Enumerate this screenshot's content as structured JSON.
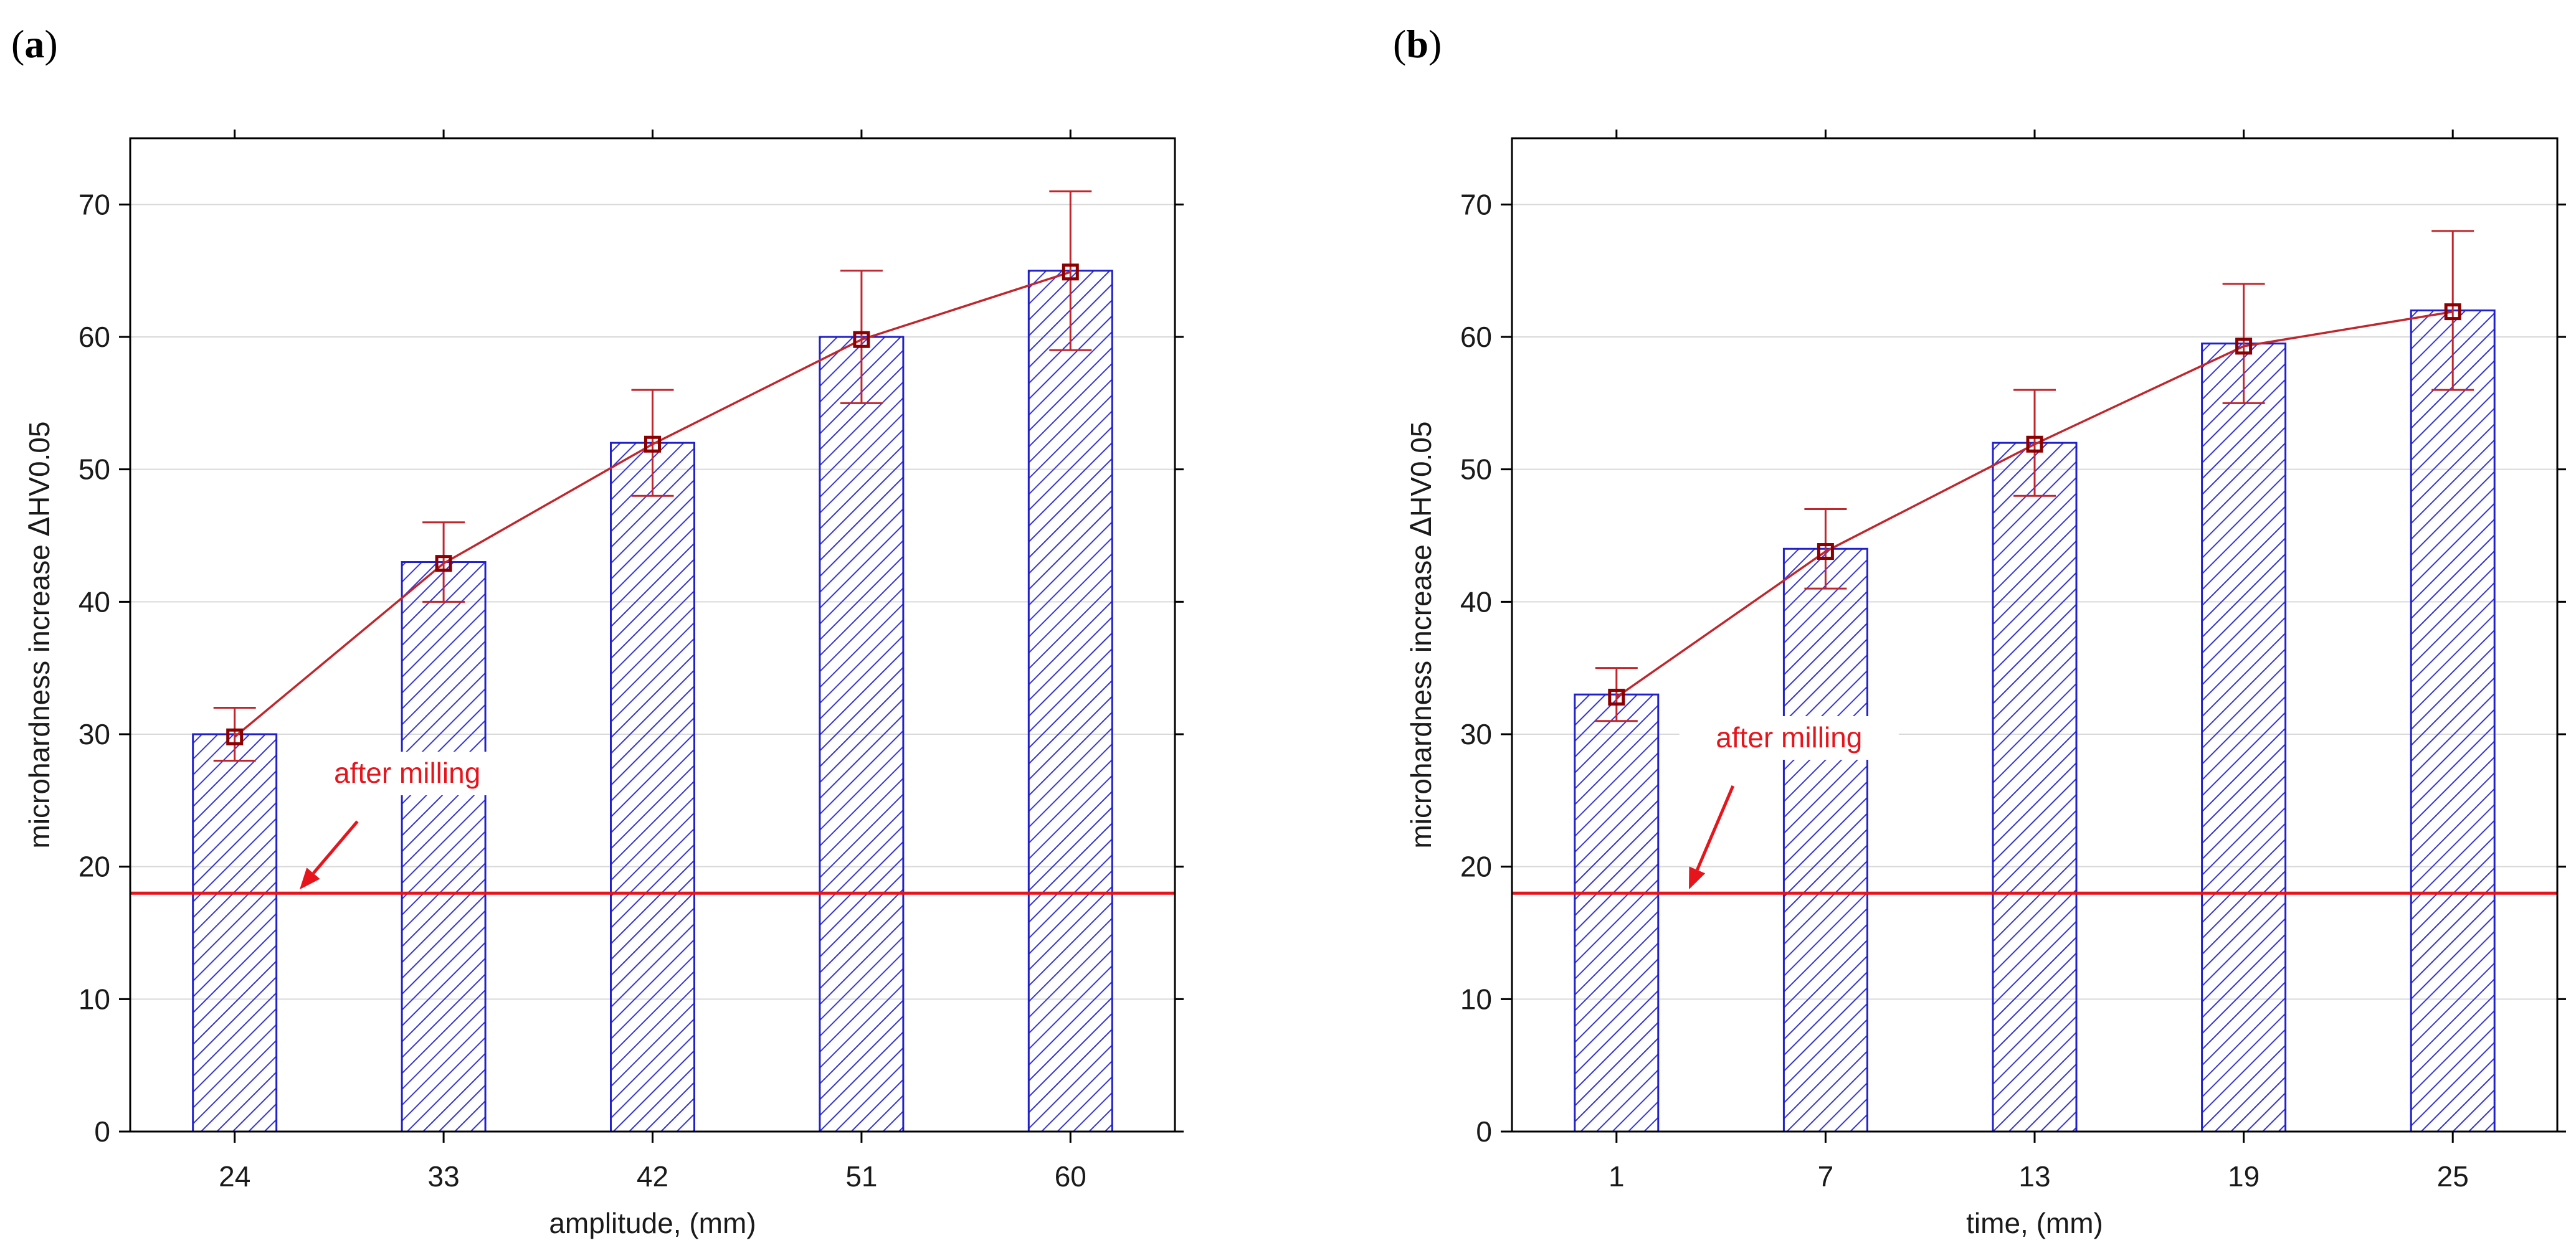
{
  "figure": {
    "colors": {
      "bar_stroke": "#2020cc",
      "hatch": "#3333dd",
      "series_line": "#c0262c",
      "marker": "#8b0000",
      "reference_line": "#e8141c",
      "annotation": "#e8141c",
      "grid": "#d9d9d9",
      "frame": "#000000"
    }
  },
  "chart_data": [
    {
      "panel_label": "(a)",
      "panel_label_parts": {
        "open": "(",
        "letter": "a",
        "close": ")"
      },
      "type": "bar",
      "categories": [
        "24",
        "33",
        "42",
        "51",
        "60"
      ],
      "values": [
        30,
        43,
        52,
        60,
        65
      ],
      "line_series": {
        "type": "line",
        "values": [
          29.8,
          42.9,
          51.9,
          59.8,
          64.9
        ],
        "error_low": [
          28,
          40,
          48,
          55,
          59
        ],
        "error_high": [
          32,
          46,
          56,
          65,
          71
        ]
      },
      "reference_line": {
        "value": 18,
        "label": "after milling"
      },
      "xlabel": "amplitude, (mm)",
      "ylabel_prefix": "microhardness increase  ",
      "ylabel_symbol": "Δ",
      "ylabel_suffix": "HV0.05",
      "ylim": [
        0,
        75
      ],
      "yticks": [
        0,
        10,
        20,
        30,
        40,
        50,
        60,
        70
      ],
      "ytick_labels": [
        "0",
        "10",
        "20",
        "30",
        "40",
        "50",
        "60",
        "70"
      ],
      "grid": "horizontal"
    },
    {
      "panel_label": "(b)",
      "panel_label_parts": {
        "open": "(",
        "letter": "b",
        "close": ")"
      },
      "type": "bar",
      "categories": [
        "1",
        "7",
        "13",
        "19",
        "25"
      ],
      "values": [
        33,
        44,
        52,
        59.5,
        62
      ],
      "line_series": {
        "type": "line",
        "values": [
          32.8,
          43.8,
          51.9,
          59.3,
          61.9
        ],
        "error_low": [
          31,
          41,
          48,
          55,
          56
        ],
        "error_high": [
          35,
          47,
          56,
          64,
          68
        ]
      },
      "reference_line": {
        "value": 18,
        "label": "after milling"
      },
      "xlabel": "time, (mm)",
      "ylabel_prefix": "microhardness increase  ",
      "ylabel_symbol": "Δ",
      "ylabel_suffix": "HV0.05",
      "ylim": [
        0,
        75
      ],
      "yticks": [
        0,
        10,
        20,
        30,
        40,
        50,
        60,
        70
      ],
      "ytick_labels": [
        "0",
        "10",
        "20",
        "30",
        "40",
        "50",
        "60",
        "70"
      ],
      "grid": "horizontal"
    }
  ]
}
